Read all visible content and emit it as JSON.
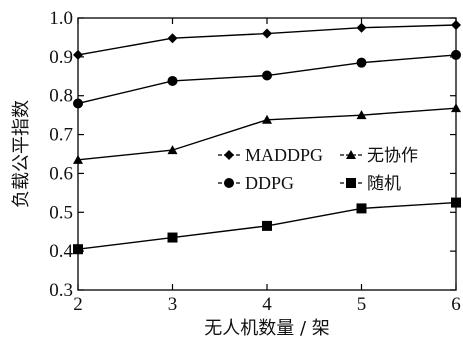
{
  "chart_data": {
    "type": "line",
    "title": "",
    "xlabel": "无人机数量 / 架",
    "ylabel": "负载公平指数",
    "x": [
      2,
      3,
      4,
      5,
      6
    ],
    "xlim": [
      2,
      6
    ],
    "ylim": [
      0.3,
      1.0
    ],
    "x_ticks": [
      "2",
      "3",
      "4",
      "5",
      "6"
    ],
    "y_ticks": [
      "0.3",
      "0.4",
      "0.5",
      "0.6",
      "0.7",
      "0.8",
      "0.9",
      "1.0"
    ],
    "grid": false,
    "legend_position": "center-right",
    "series": [
      {
        "name": "MADDPG",
        "marker": "diamond",
        "values": [
          0.905,
          0.948,
          0.96,
          0.975,
          0.982
        ]
      },
      {
        "name": "无协作",
        "marker": "triangle",
        "values": [
          0.635,
          0.66,
          0.738,
          0.75,
          0.768
        ]
      },
      {
        "name": "DDPG",
        "marker": "circle",
        "values": [
          0.78,
          0.838,
          0.852,
          0.885,
          0.905
        ]
      },
      {
        "name": "随机",
        "marker": "square",
        "values": [
          0.405,
          0.435,
          0.465,
          0.51,
          0.525
        ]
      }
    ],
    "colors": {
      "line": "#000000",
      "axis": "#000000"
    }
  }
}
